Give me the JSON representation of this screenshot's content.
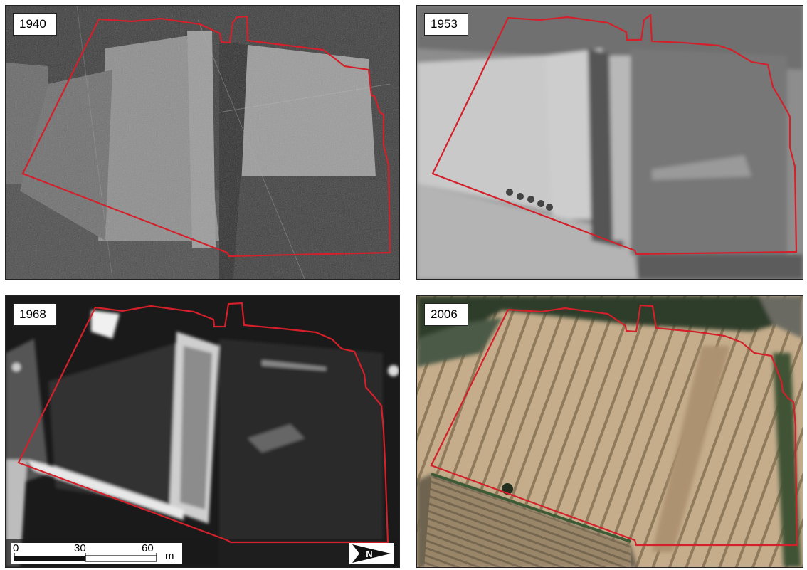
{
  "panels": [
    {
      "year": "1940",
      "style": "grayscale-dark"
    },
    {
      "year": "1953",
      "style": "grayscale-soft"
    },
    {
      "year": "1968",
      "style": "grayscale-contrast"
    },
    {
      "year": "2006",
      "style": "color-orthophoto"
    }
  ],
  "scale_bar": {
    "ticks": [
      "0",
      "30",
      "60"
    ],
    "unit": "m"
  },
  "north_arrow": {
    "label": "N"
  },
  "colors": {
    "boundary": "#d3202a"
  }
}
